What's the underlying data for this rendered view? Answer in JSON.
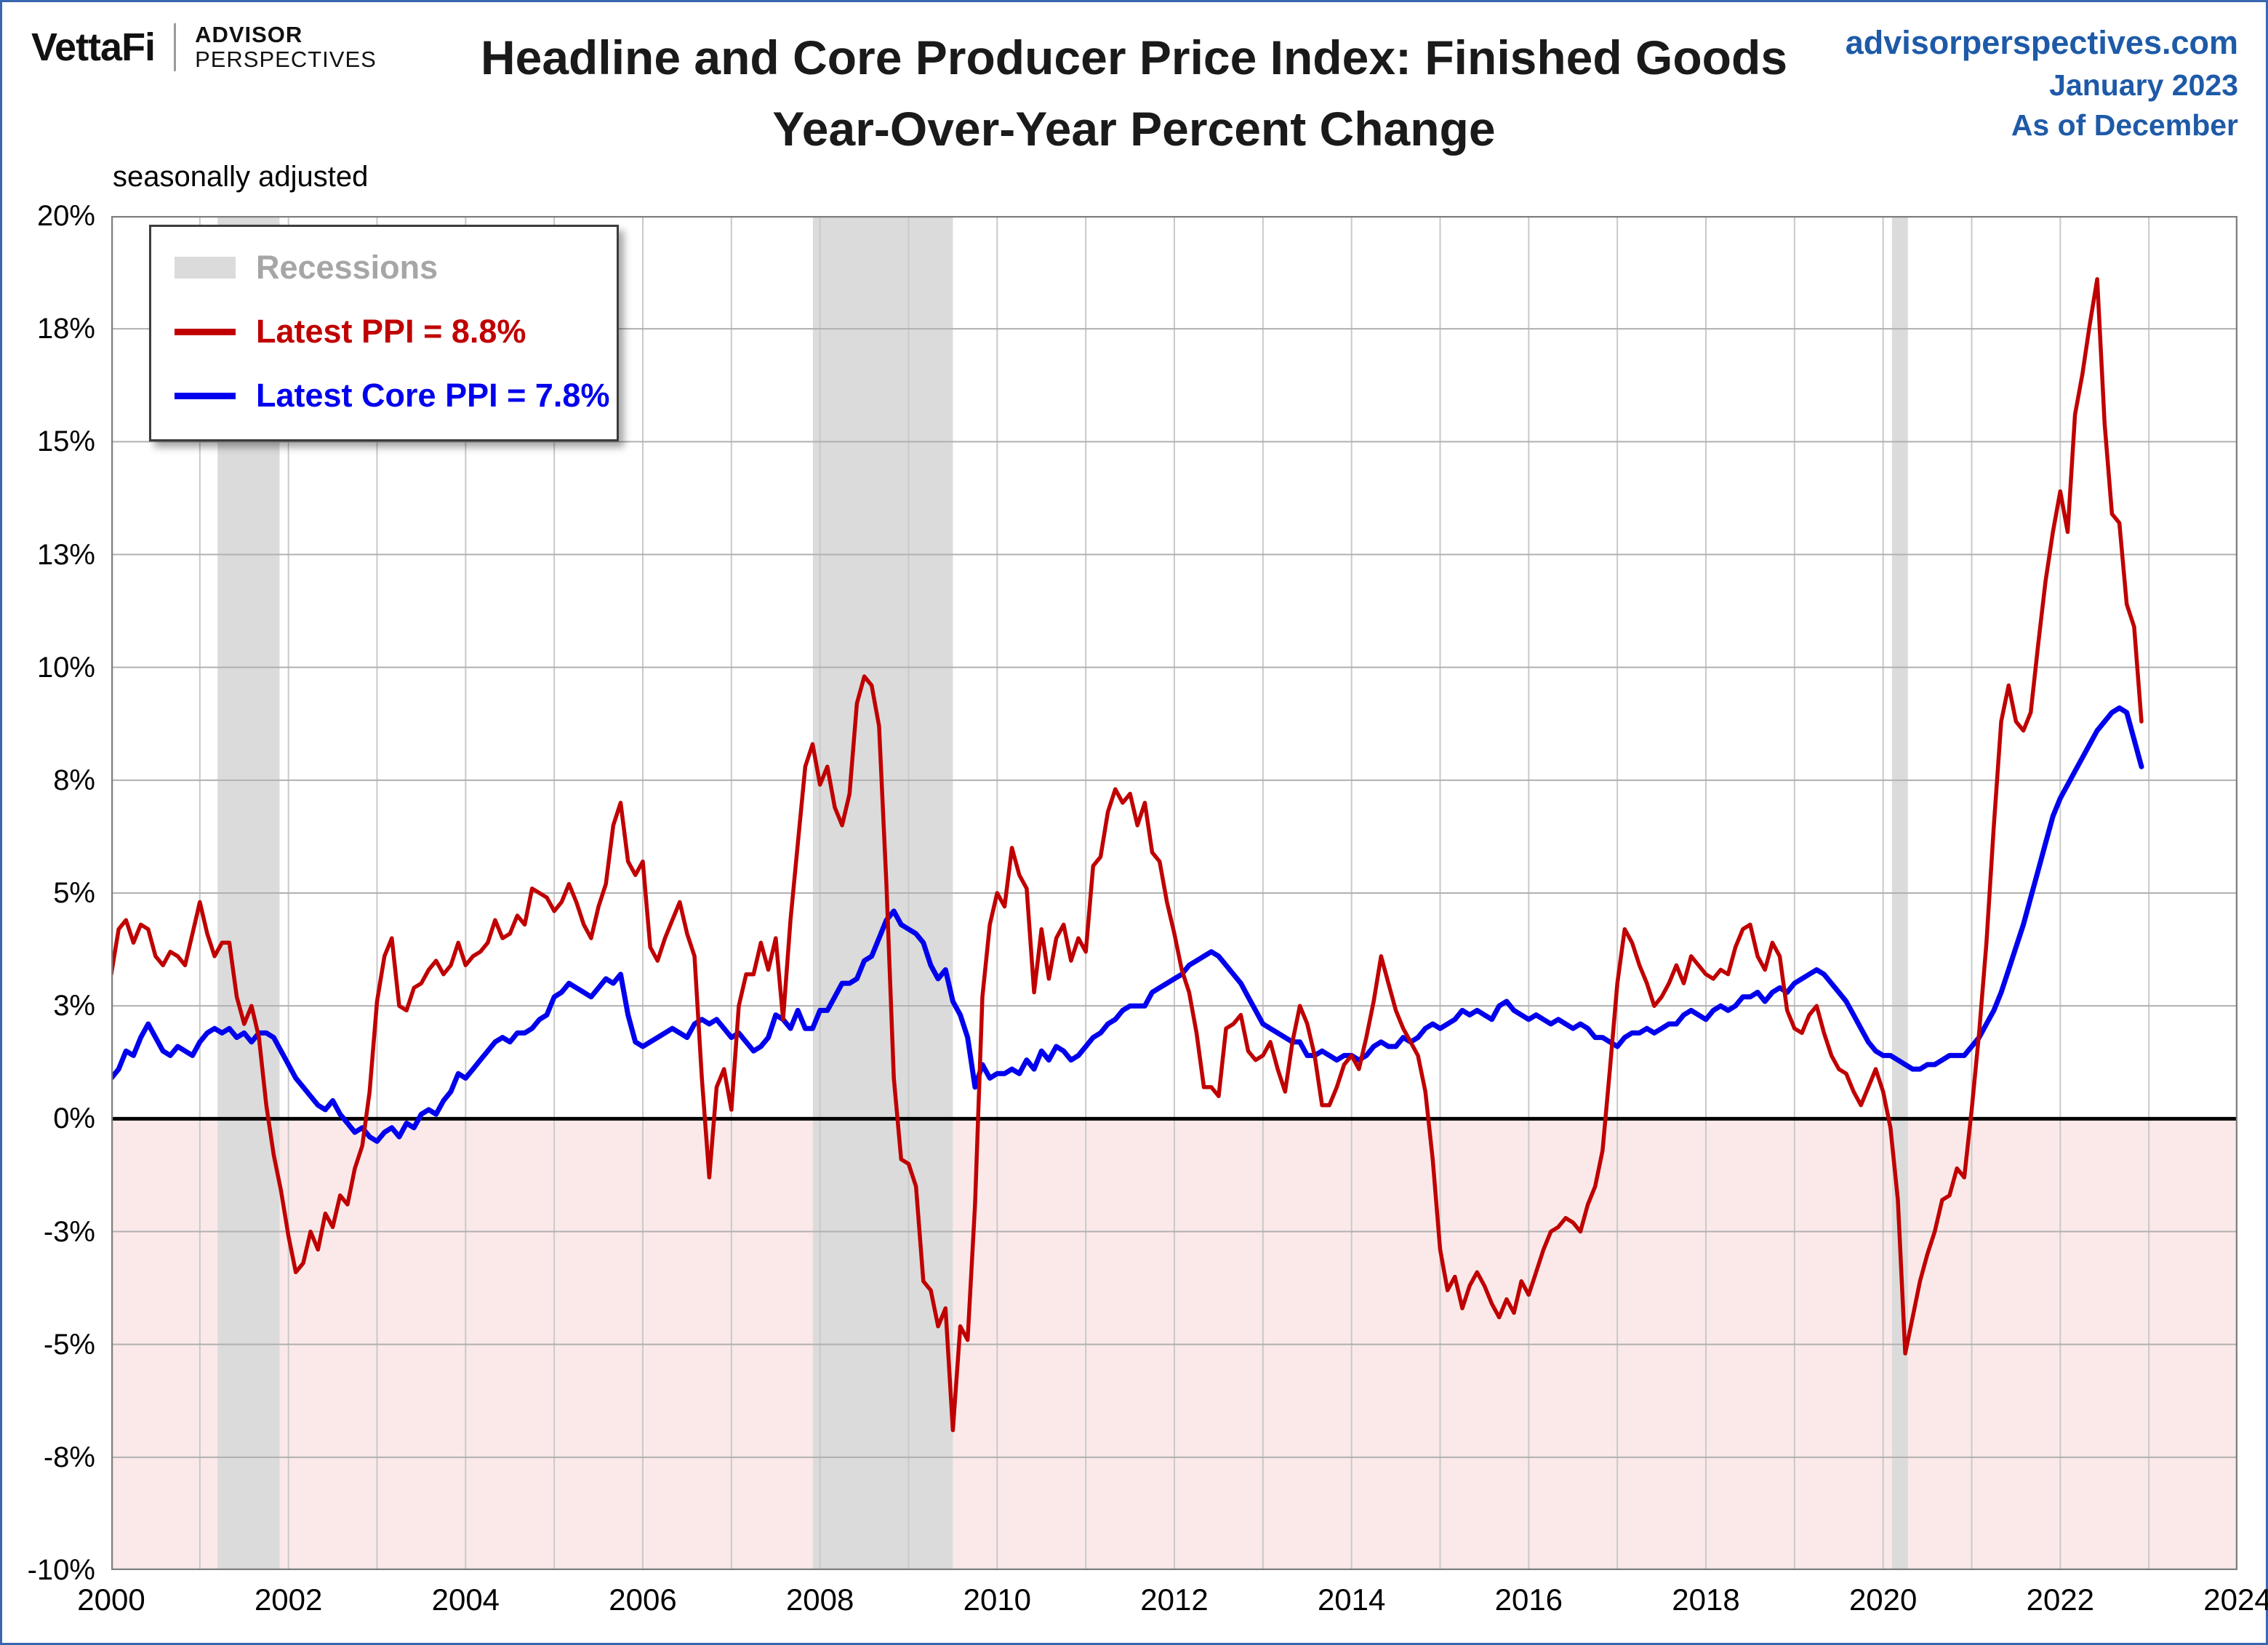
{
  "branding": {
    "vettafi": "VettaFi",
    "advisor": "ADVISOR",
    "perspectives": "PERSPECTIVES"
  },
  "header": {
    "title_line1": "Headline and Core Producer Price Index: Finished Goods",
    "title_line2": "Year-Over-Year Percent Change",
    "site": "advisorperspectives.com",
    "date": "January 2023",
    "asof": "As of December"
  },
  "subtitle": "seasonally adjusted",
  "legend": {
    "recessions": "Recessions",
    "ppi": "Latest PPI = 8.8%",
    "core_ppi": "Latest Core PPI = 7.8%"
  },
  "colors": {
    "ppi_red": "#c00000",
    "core_blue": "#0000ee",
    "recession": "#dbdbdb",
    "negative_zone": "#fbe9e9",
    "grid_vertical": "#c9c9c9",
    "grid_horizontal": "#b0b0b0",
    "plot_border": "#7f7f7f",
    "source_text_blue": "#1e5aa7",
    "legend_gray_text": "#a6a6a6"
  },
  "chart_data": {
    "type": "line",
    "title": "Headline and Core Producer Price Index: Finished Goods — Year-Over-Year Percent Change",
    "note": "seasonally adjusted",
    "latest_ppi": 8.8,
    "latest_core_ppi": 7.8,
    "x_start_year": 2000,
    "x_step_months": 1,
    "x_axis": {
      "min": 2000,
      "max": 2024,
      "tick_years": [
        2000,
        2002,
        2004,
        2006,
        2008,
        2010,
        2012,
        2014,
        2016,
        2018,
        2020,
        2022,
        2024
      ],
      "gridline_every_year": true
    },
    "y_axis": {
      "min": -10,
      "max": 20,
      "grid_step": 2.5,
      "ticks": [
        {
          "value": 20,
          "label": "20%"
        },
        {
          "value": 17.5,
          "label": "18%"
        },
        {
          "value": 15,
          "label": "15%"
        },
        {
          "value": 12.5,
          "label": "13%"
        },
        {
          "value": 10,
          "label": "10%"
        },
        {
          "value": 7.5,
          "label": "8%"
        },
        {
          "value": 5,
          "label": "5%"
        },
        {
          "value": 2.5,
          "label": "3%"
        },
        {
          "value": 0,
          "label": "0%"
        },
        {
          "value": -2.5,
          "label": "-3%"
        },
        {
          "value": -5,
          "label": "-5%"
        },
        {
          "value": -7.5,
          "label": "-8%"
        },
        {
          "value": -10,
          "label": "-10%"
        }
      ]
    },
    "recessions": [
      [
        2001.2,
        2001.9
      ],
      [
        2007.92,
        2009.5
      ],
      [
        2020.1,
        2020.28
      ]
    ],
    "series": [
      {
        "id": "ppi",
        "name": "Latest PPI = 8.8%",
        "color": "#c00000",
        "values": [
          3.2,
          4.2,
          4.4,
          3.9,
          4.3,
          4.2,
          3.6,
          3.4,
          3.7,
          3.6,
          3.4,
          4.1,
          4.8,
          4.1,
          3.6,
          3.9,
          3.9,
          2.7,
          2.1,
          2.5,
          1.8,
          0.3,
          -0.8,
          -1.6,
          -2.6,
          -3.4,
          -3.2,
          -2.5,
          -2.9,
          -2.1,
          -2.4,
          -1.7,
          -1.9,
          -1.1,
          -0.6,
          0.6,
          2.6,
          3.6,
          4.0,
          2.5,
          2.4,
          2.9,
          3.0,
          3.3,
          3.5,
          3.2,
          3.4,
          3.9,
          3.4,
          3.6,
          3.7,
          3.9,
          4.4,
          4.0,
          4.1,
          4.5,
          4.3,
          5.1,
          5.0,
          4.9,
          4.6,
          4.8,
          5.2,
          4.8,
          4.3,
          4.0,
          4.7,
          5.2,
          6.5,
          7.0,
          5.7,
          5.4,
          5.7,
          3.8,
          3.5,
          4.0,
          4.4,
          4.8,
          4.1,
          3.6,
          0.9,
          -1.3,
          0.7,
          1.1,
          0.2,
          2.5,
          3.2,
          3.2,
          3.9,
          3.3,
          4.0,
          2.2,
          4.4,
          6.1,
          7.8,
          8.3,
          7.4,
          7.8,
          6.9,
          6.5,
          7.2,
          9.2,
          9.8,
          9.6,
          8.7,
          5.2,
          0.9,
          -0.9,
          -1.0,
          -1.5,
          -3.6,
          -3.8,
          -4.6,
          -4.2,
          -6.9,
          -4.6,
          -4.9,
          -1.9,
          2.7,
          4.3,
          5.0,
          4.7,
          6.0,
          5.4,
          5.1,
          2.8,
          4.2,
          3.1,
          4.0,
          4.3,
          3.5,
          4.0,
          3.7,
          5.6,
          5.8,
          6.8,
          7.3,
          7.0,
          7.2,
          6.5,
          7.0,
          5.9,
          5.7,
          4.8,
          4.1,
          3.3,
          2.8,
          1.9,
          0.7,
          0.7,
          0.5,
          2.0,
          2.1,
          2.3,
          1.5,
          1.3,
          1.4,
          1.7,
          1.1,
          0.6,
          1.7,
          2.5,
          2.1,
          1.4,
          0.3,
          0.3,
          0.7,
          1.2,
          1.4,
          1.1,
          1.8,
          2.6,
          3.6,
          3.0,
          2.4,
          2.0,
          1.7,
          1.4,
          0.6,
          -0.9,
          -2.9,
          -3.8,
          -3.5,
          -4.2,
          -3.7,
          -3.4,
          -3.7,
          -4.1,
          -4.4,
          -4.0,
          -4.3,
          -3.6,
          -3.9,
          -3.4,
          -2.9,
          -2.5,
          -2.4,
          -2.2,
          -2.3,
          -2.5,
          -1.9,
          -1.5,
          -0.7,
          1.1,
          3.0,
          4.2,
          3.9,
          3.4,
          3.0,
          2.5,
          2.7,
          3.0,
          3.4,
          3.0,
          3.6,
          3.4,
          3.2,
          3.1,
          3.3,
          3.2,
          3.8,
          4.2,
          4.3,
          3.6,
          3.3,
          3.9,
          3.6,
          2.4,
          2.0,
          1.9,
          2.3,
          2.5,
          1.9,
          1.4,
          1.1,
          1.0,
          0.6,
          0.3,
          0.7,
          1.1,
          0.6,
          -0.2,
          -1.8,
          -5.2,
          -4.4,
          -3.6,
          -3.0,
          -2.5,
          -1.8,
          -1.7,
          -1.1,
          -1.3,
          0.2,
          1.9,
          3.9,
          6.5,
          8.8,
          9.6,
          8.8,
          8.6,
          9.0,
          10.5,
          11.9,
          13.0,
          13.9,
          13.0,
          15.6,
          16.5,
          17.6,
          18.6,
          15.4,
          13.4,
          13.2,
          11.4,
          10.9,
          8.8
        ]
      },
      {
        "id": "core-ppi",
        "name": "Latest Core PPI = 7.8%",
        "color": "#0000ee",
        "values": [
          0.9,
          1.1,
          1.5,
          1.4,
          1.8,
          2.1,
          1.8,
          1.5,
          1.4,
          1.6,
          1.5,
          1.4,
          1.7,
          1.9,
          2.0,
          1.9,
          2.0,
          1.8,
          1.9,
          1.7,
          1.9,
          1.9,
          1.8,
          1.5,
          1.2,
          0.9,
          0.7,
          0.5,
          0.3,
          0.2,
          0.4,
          0.1,
          -0.1,
          -0.3,
          -0.2,
          -0.4,
          -0.5,
          -0.3,
          -0.2,
          -0.4,
          -0.1,
          -0.2,
          0.1,
          0.2,
          0.1,
          0.4,
          0.6,
          1.0,
          0.9,
          1.1,
          1.3,
          1.5,
          1.7,
          1.8,
          1.7,
          1.9,
          1.9,
          2.0,
          2.2,
          2.3,
          2.7,
          2.8,
          3.0,
          2.9,
          2.8,
          2.7,
          2.9,
          3.1,
          3.0,
          3.2,
          2.3,
          1.7,
          1.6,
          1.7,
          1.8,
          1.9,
          2.0,
          1.9,
          1.8,
          2.1,
          2.2,
          2.1,
          2.2,
          2.0,
          1.8,
          1.9,
          1.7,
          1.5,
          1.6,
          1.8,
          2.3,
          2.2,
          2.0,
          2.4,
          2.0,
          2.0,
          2.4,
          2.4,
          2.7,
          3.0,
          3.0,
          3.1,
          3.5,
          3.6,
          4.0,
          4.4,
          4.6,
          4.3,
          4.2,
          4.1,
          3.9,
          3.4,
          3.1,
          3.3,
          2.6,
          2.3,
          1.8,
          0.7,
          1.2,
          0.9,
          1.0,
          1.0,
          1.1,
          1.0,
          1.3,
          1.1,
          1.5,
          1.3,
          1.6,
          1.5,
          1.3,
          1.4,
          1.6,
          1.8,
          1.9,
          2.1,
          2.2,
          2.4,
          2.5,
          2.5,
          2.5,
          2.8,
          2.9,
          3.0,
          3.1,
          3.2,
          3.4,
          3.5,
          3.6,
          3.7,
          3.6,
          3.4,
          3.2,
          3.0,
          2.7,
          2.4,
          2.1,
          2.0,
          1.9,
          1.8,
          1.7,
          1.7,
          1.4,
          1.4,
          1.5,
          1.4,
          1.3,
          1.4,
          1.4,
          1.3,
          1.4,
          1.6,
          1.7,
          1.6,
          1.6,
          1.8,
          1.7,
          1.8,
          2.0,
          2.1,
          2.0,
          2.1,
          2.2,
          2.4,
          2.3,
          2.4,
          2.3,
          2.2,
          2.5,
          2.6,
          2.4,
          2.3,
          2.2,
          2.3,
          2.2,
          2.1,
          2.2,
          2.1,
          2.0,
          2.1,
          2.0,
          1.8,
          1.8,
          1.7,
          1.6,
          1.8,
          1.9,
          1.9,
          2.0,
          1.9,
          2.0,
          2.1,
          2.1,
          2.3,
          2.4,
          2.3,
          2.2,
          2.4,
          2.5,
          2.4,
          2.5,
          2.7,
          2.7,
          2.8,
          2.6,
          2.8,
          2.9,
          2.8,
          3.0,
          3.1,
          3.2,
          3.3,
          3.2,
          3.0,
          2.8,
          2.6,
          2.3,
          2.0,
          1.7,
          1.5,
          1.4,
          1.4,
          1.3,
          1.2,
          1.1,
          1.1,
          1.2,
          1.2,
          1.3,
          1.4,
          1.4,
          1.4,
          1.6,
          1.8,
          2.1,
          2.4,
          2.8,
          3.3,
          3.8,
          4.3,
          4.9,
          5.5,
          6.1,
          6.7,
          7.1,
          7.4,
          7.7,
          8.0,
          8.3,
          8.6,
          8.8,
          9.0,
          9.1,
          9.0,
          8.4,
          7.8
        ]
      }
    ]
  }
}
